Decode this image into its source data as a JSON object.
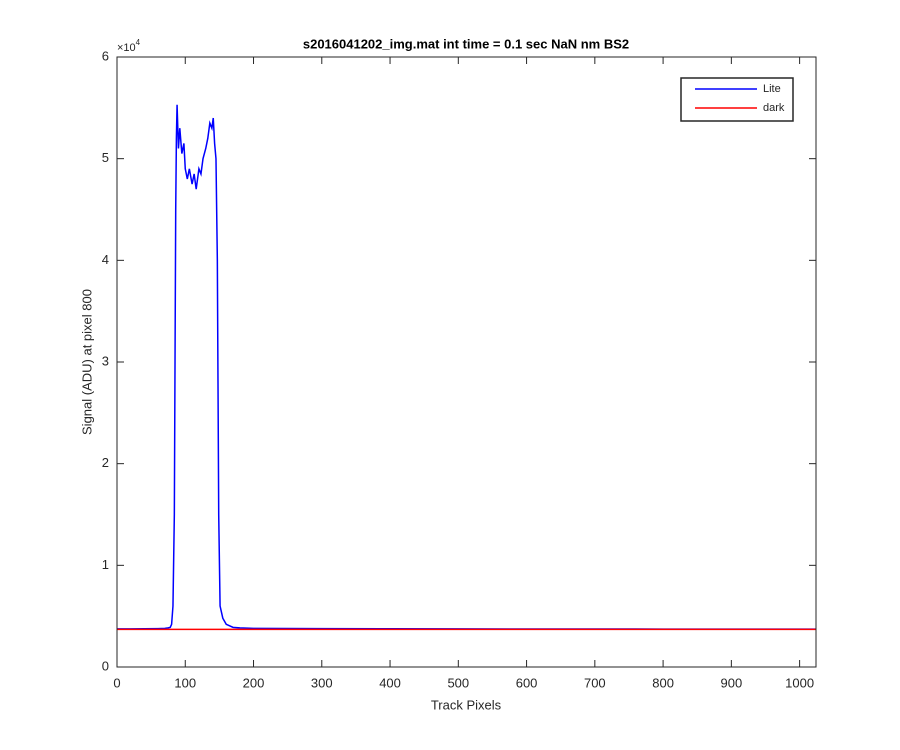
{
  "chart_data": {
    "type": "line",
    "title": "s2016041202_img.mat int time = 0.1 sec  NaN nm BS2",
    "x_label": "Track Pixels",
    "y_label": "Signal (ADU) at pixel 800",
    "y_multiplier": {
      "base": "×10",
      "exponent": "4"
    },
    "xlim": [
      0,
      1024
    ],
    "ylim": [
      0,
      60000
    ],
    "xticks": [
      0,
      100,
      200,
      300,
      400,
      500,
      600,
      700,
      800,
      900,
      1000
    ],
    "yticks": [
      {
        "value": 0,
        "label": "0"
      },
      {
        "value": 10000,
        "label": "1"
      },
      {
        "value": 20000,
        "label": "2"
      },
      {
        "value": 30000,
        "label": "3"
      },
      {
        "value": 40000,
        "label": "4"
      },
      {
        "value": 50000,
        "label": "5"
      },
      {
        "value": 60000,
        "label": "6"
      }
    ],
    "grid": false,
    "legend": "northeast",
    "series": [
      {
        "name": "Lite",
        "color": "#0000ff",
        "x": [
          0,
          20,
          40,
          60,
          70,
          75,
          78,
          80,
          82,
          84,
          85,
          86,
          87,
          88,
          90,
          92,
          95,
          98,
          100,
          103,
          106,
          110,
          113,
          116,
          120,
          123,
          126,
          130,
          133,
          136,
          139,
          141,
          143,
          145,
          147,
          149,
          151,
          155,
          160,
          170,
          180,
          200,
          300,
          400,
          500,
          600,
          700,
          800,
          900,
          1024
        ],
        "values": [
          3750,
          3750,
          3760,
          3780,
          3800,
          3850,
          3900,
          4200,
          6000,
          15000,
          30000,
          45000,
          52000,
          55300,
          51000,
          53000,
          50500,
          51500,
          49000,
          48000,
          49000,
          47500,
          48500,
          47000,
          49000,
          48500,
          50000,
          51000,
          52000,
          53500,
          53000,
          54000,
          51500,
          50000,
          40000,
          15000,
          6000,
          4800,
          4200,
          3900,
          3850,
          3800,
          3780,
          3760,
          3750,
          3740,
          3740,
          3730,
          3720,
          3720
        ]
      },
      {
        "name": "dark",
        "color": "#ff0000",
        "x": [
          0,
          1024
        ],
        "values": [
          3700,
          3700
        ]
      }
    ]
  }
}
